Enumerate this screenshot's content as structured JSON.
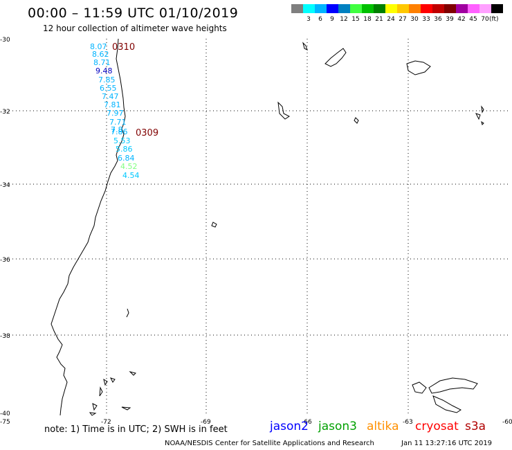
{
  "header": {
    "title": "00:00 – 11:59 UTC 01/10/2019",
    "subtitle": "12 hour collection of altimeter wave heights"
  },
  "legend": {
    "swatches": [
      {
        "color": "#7f7f7f",
        "label": ""
      },
      {
        "color": "#00ffff",
        "label": "3"
      },
      {
        "color": "#00b4ff",
        "label": "6"
      },
      {
        "color": "#0000ff",
        "label": "9"
      },
      {
        "color": "#0080c0",
        "label": "12"
      },
      {
        "color": "#40ff40",
        "label": "15"
      },
      {
        "color": "#00c000",
        "label": "18"
      },
      {
        "color": "#008000",
        "label": "21"
      },
      {
        "color": "#ffff00",
        "label": "24"
      },
      {
        "color": "#ffc800",
        "label": "27"
      },
      {
        "color": "#ff8000",
        "label": "30"
      },
      {
        "color": "#ff0000",
        "label": "33"
      },
      {
        "color": "#c00000",
        "label": "36"
      },
      {
        "color": "#800000",
        "label": "39"
      },
      {
        "color": "#a000a0",
        "label": "42"
      },
      {
        "color": "#ff60ff",
        "label": "45"
      },
      {
        "color": "#ffa0ff",
        "label": "70"
      },
      {
        "color": "#000000",
        "label": ""
      }
    ],
    "unit": "(ft)"
  },
  "axes": {
    "lat_labels": [
      "-30",
      "-32",
      "-34",
      "-36",
      "-38",
      "-40"
    ],
    "lon_labels": [
      "-75",
      "-72",
      "-69",
      "-66",
      "-63",
      "-60"
    ]
  },
  "track": {
    "time_labels": [
      {
        "text": "0310",
        "color": "#800000"
      },
      {
        "text": "0309",
        "color": "#800000"
      }
    ],
    "values": [
      {
        "text": "8.07",
        "color": "#00b4ff"
      },
      {
        "text": "8.62",
        "color": "#00b4ff"
      },
      {
        "text": "8.71",
        "color": "#00b4ff"
      },
      {
        "text": "9.48",
        "color": "#0000c0"
      },
      {
        "text": "7.85",
        "color": "#00b4ff"
      },
      {
        "text": "6.55",
        "color": "#00b4ff"
      },
      {
        "text": "7.47",
        "color": "#00b4ff"
      },
      {
        "text": "7.81",
        "color": "#00b4ff"
      },
      {
        "text": "7.97",
        "color": "#00b4ff"
      },
      {
        "text": "7.71",
        "color": "#00b4ff"
      },
      {
        "text": "7.8",
        "color": "#00b4ff"
      },
      {
        "text": "7.86",
        "color": "#00b4ff"
      },
      {
        "text": "5.53",
        "color": "#00c8ff"
      },
      {
        "text": "5.86",
        "color": "#00c8ff"
      },
      {
        "text": "6.84",
        "color": "#00b4ff"
      },
      {
        "text": "4.52",
        "color": "#80ff80"
      },
      {
        "text": "4.54",
        "color": "#00c8ff"
      }
    ]
  },
  "footer": {
    "note": "note: 1) Time is in UTC; 2) SWH is in feet",
    "satellites": [
      {
        "name": "jason2",
        "color": "#0000ff"
      },
      {
        "name": "jason3",
        "color": "#00a000"
      },
      {
        "name": "altika",
        "color": "#ff9000"
      },
      {
        "name": "cryosat",
        "color": "#ff0000"
      },
      {
        "name": "s3a",
        "color": "#b00000"
      }
    ],
    "credit": "NOAA/NESDIS Center for Satellite Applications and Research",
    "timestamp": "Jan 11 13:27:16 UTC 2019"
  }
}
